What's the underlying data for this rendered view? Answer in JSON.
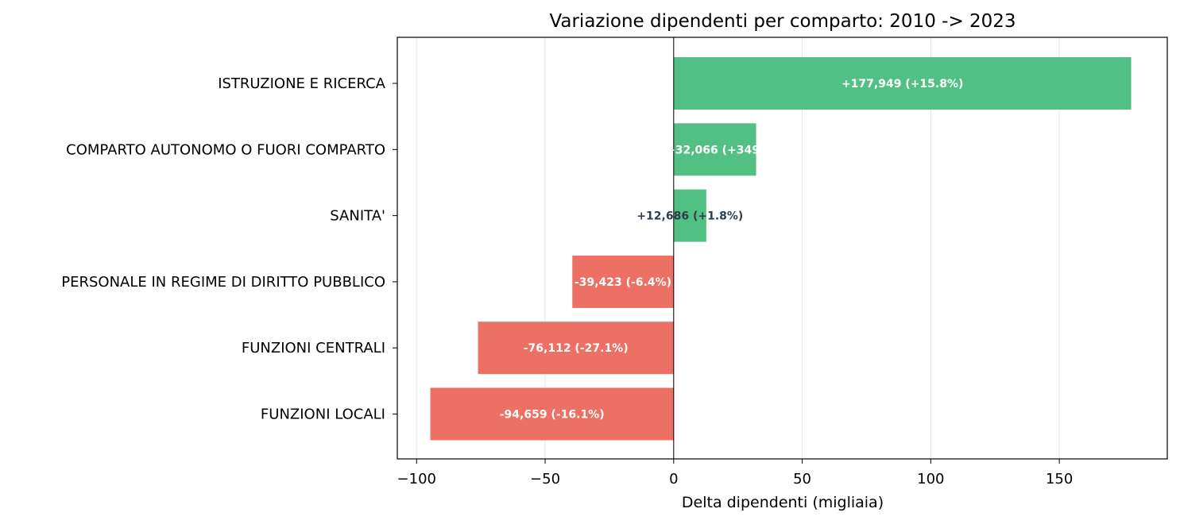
{
  "chart_data": {
    "type": "bar",
    "orientation": "horizontal",
    "title": "Variazione dipendenti per comparto: 2010 -> 2023",
    "xlabel": "Delta dipendenti (migliaia)",
    "ylabel": "",
    "xlim": [
      -107.5,
      192
    ],
    "xticks": [
      -100,
      -50,
      0,
      50,
      100,
      150
    ],
    "xtick_labels": [
      "−100",
      "−50",
      "0",
      "50",
      "100",
      "150"
    ],
    "grid": "vertical",
    "categories": [
      "ISTRUZIONE E RICERCA",
      "COMPARTO AUTONOMO O FUORI COMPARTO",
      "SANITA'",
      "PERSONALE IN REGIME DI DIRITTO PUBBLICO",
      "FUNZIONI CENTRALI",
      "FUNZIONI LOCALI"
    ],
    "values": [
      177.949,
      32.066,
      12.686,
      -39.423,
      -76.112,
      -94.659
    ],
    "data_labels": [
      "+177,949 (+15.8%)",
      "+32,066 (+349.",
      "+12,686 (+1.8%)",
      "-39,423 (-6.4%)",
      "-76,112 (-27.1%)",
      "-94,659 (-16.1%)"
    ],
    "colors": {
      "positive": "#52c083",
      "negative": "#ec7063",
      "label_light": "#ffffff",
      "label_dark": "#2c3e50",
      "grid": "#e6e6e6"
    }
  }
}
